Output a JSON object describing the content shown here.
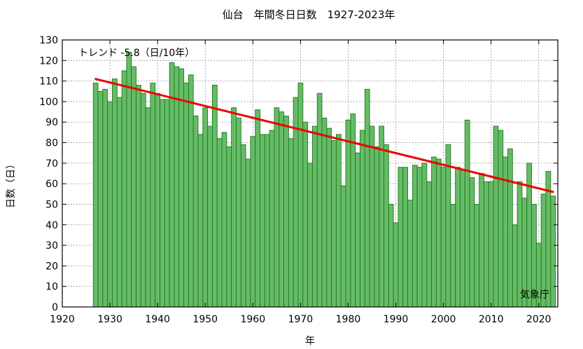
{
  "chart_data": {
    "type": "bar",
    "title": "仙台　年間冬日日数　1927-2023年",
    "xlabel": "年",
    "ylabel": "日数（日）",
    "trend_label": "トレンド -5.8（日/10年）",
    "source_label": "気象庁",
    "xlim": [
      1920,
      2024
    ],
    "ylim": [
      0,
      130
    ],
    "x_ticks": [
      1920,
      1930,
      1940,
      1950,
      1960,
      1970,
      1980,
      1990,
      2000,
      2010,
      2020
    ],
    "y_ticks": [
      0,
      10,
      20,
      30,
      40,
      50,
      60,
      70,
      80,
      90,
      100,
      110,
      120,
      130
    ],
    "grid": true,
    "bar_color": "#66bb66",
    "bar_edge_color": "#1f7a1f",
    "trend_color": "#ee0000",
    "trend_line": {
      "x": [
        1927,
        2023
      ],
      "y": [
        111,
        56
      ]
    },
    "x": [
      1927,
      1928,
      1929,
      1930,
      1931,
      1932,
      1933,
      1934,
      1935,
      1936,
      1937,
      1938,
      1939,
      1940,
      1941,
      1942,
      1943,
      1944,
      1945,
      1946,
      1947,
      1948,
      1949,
      1950,
      1951,
      1952,
      1953,
      1954,
      1955,
      1956,
      1957,
      1958,
      1959,
      1960,
      1961,
      1962,
      1963,
      1964,
      1965,
      1966,
      1967,
      1968,
      1969,
      1970,
      1971,
      1972,
      1973,
      1974,
      1975,
      1976,
      1977,
      1978,
      1979,
      1980,
      1981,
      1982,
      1983,
      1984,
      1985,
      1986,
      1987,
      1988,
      1989,
      1990,
      1991,
      1992,
      1993,
      1994,
      1995,
      1996,
      1997,
      1998,
      1999,
      2000,
      2001,
      2002,
      2003,
      2004,
      2005,
      2006,
      2007,
      2008,
      2009,
      2010,
      2011,
      2012,
      2013,
      2014,
      2015,
      2016,
      2017,
      2018,
      2019,
      2020,
      2021,
      2022,
      2023
    ],
    "values": [
      109,
      105,
      106,
      100,
      111,
      102,
      115,
      124,
      117,
      108,
      104,
      97,
      109,
      104,
      101,
      101,
      119,
      117,
      116,
      109,
      113,
      93,
      84,
      97,
      88,
      108,
      82,
      85,
      78,
      97,
      92,
      79,
      72,
      83,
      96,
      84,
      84,
      86,
      97,
      95,
      93,
      82,
      102,
      109,
      90,
      70,
      88,
      104,
      92,
      87,
      81,
      84,
      59,
      91,
      94,
      75,
      86,
      106,
      88,
      78,
      88,
      79,
      50,
      41,
      68,
      68,
      52,
      69,
      68,
      70,
      61,
      73,
      72,
      68,
      79,
      50,
      68,
      67,
      91,
      63,
      50,
      65,
      61,
      61,
      88,
      86,
      73,
      77,
      40,
      61,
      53,
      70,
      50,
      31,
      55,
      66,
      54
    ]
  }
}
